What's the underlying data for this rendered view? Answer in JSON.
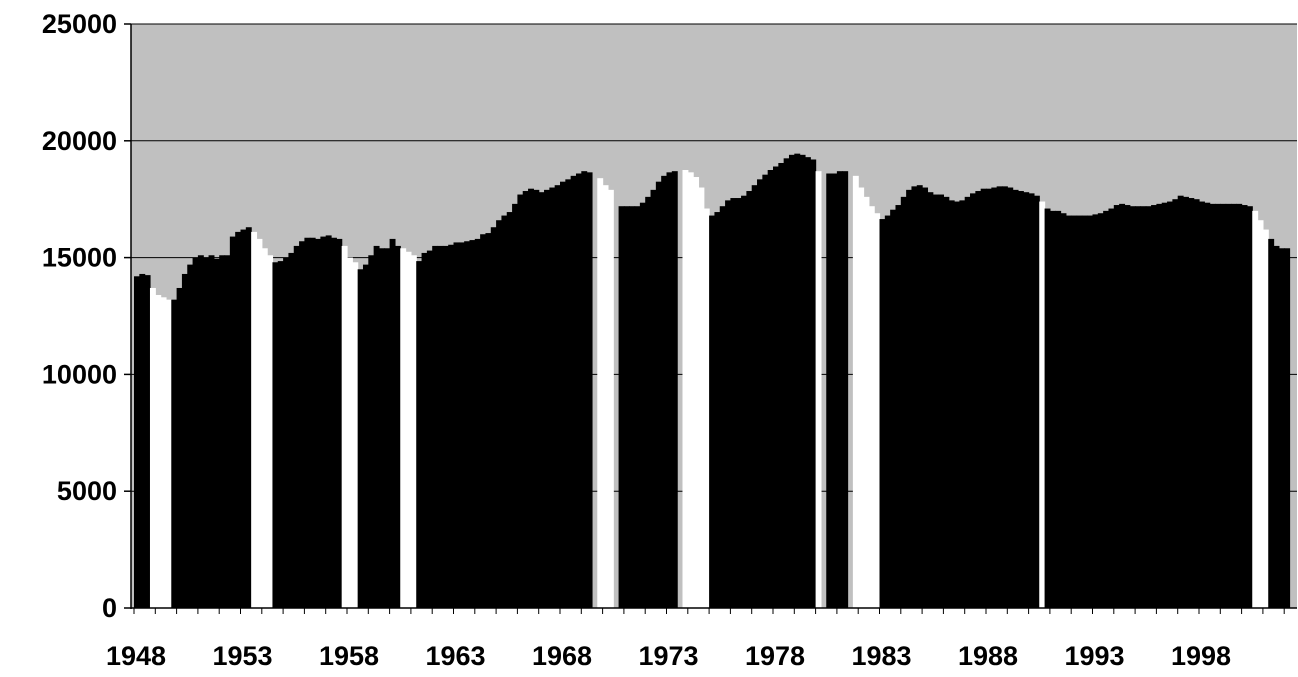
{
  "chart_data": {
    "type": "bar",
    "title": "",
    "xlabel": "",
    "ylabel": "",
    "ylim": [
      0,
      25000
    ],
    "y_ticks": [
      "0",
      "5000",
      "10000",
      "15000",
      "20000",
      "25000"
    ],
    "x_tick_labels": [
      "1948",
      "1953",
      "1958",
      "1963",
      "1968",
      "1973",
      "1978",
      "1983",
      "1988",
      "1993",
      "1998"
    ],
    "x_range": [
      1948,
      2002.25
    ],
    "grid": "horizontal major gridlines",
    "legend": "none",
    "colors": {
      "plot_background": "#c0c0c0",
      "expansion_bars": "#000000",
      "recession_bars": "#ffffff",
      "axes": "#000000"
    },
    "series": [
      {
        "values": [
          {
            "x": 1948.0,
            "y": 14200
          },
          {
            "x": 1948.25,
            "y": 14300
          },
          {
            "x": 1948.5,
            "y": 14250
          },
          {
            "x": 1948.75,
            "y": 13700,
            "recession": true
          },
          {
            "x": 1949.0,
            "y": 13400,
            "recession": true
          },
          {
            "x": 1949.25,
            "y": 13300,
            "recession": true
          },
          {
            "x": 1949.5,
            "y": 13200,
            "recession": true
          },
          {
            "x": 1949.75,
            "y": 13200
          },
          {
            "x": 1950.0,
            "y": 13700
          },
          {
            "x": 1950.25,
            "y": 14300
          },
          {
            "x": 1950.5,
            "y": 14700
          },
          {
            "x": 1950.75,
            "y": 15000
          },
          {
            "x": 1951.0,
            "y": 15100
          },
          {
            "x": 1951.25,
            "y": 15000
          },
          {
            "x": 1951.5,
            "y": 15100
          },
          {
            "x": 1951.75,
            "y": 14950
          },
          {
            "x": 1952.0,
            "y": 15100
          },
          {
            "x": 1952.25,
            "y": 15100
          },
          {
            "x": 1952.5,
            "y": 15900
          },
          {
            "x": 1952.75,
            "y": 16100
          },
          {
            "x": 1953.0,
            "y": 16200
          },
          {
            "x": 1953.25,
            "y": 16300
          },
          {
            "x": 1953.5,
            "y": 16100,
            "recession": true
          },
          {
            "x": 1953.75,
            "y": 15800,
            "recession": true
          },
          {
            "x": 1954.0,
            "y": 15400,
            "recession": true
          },
          {
            "x": 1954.25,
            "y": 15100,
            "recession": true
          },
          {
            "x": 1954.5,
            "y": 14800
          },
          {
            "x": 1954.75,
            "y": 14850
          },
          {
            "x": 1955.0,
            "y": 15000
          },
          {
            "x": 1955.25,
            "y": 15200
          },
          {
            "x": 1955.5,
            "y": 15500
          },
          {
            "x": 1955.75,
            "y": 15700
          },
          {
            "x": 1956.0,
            "y": 15850
          },
          {
            "x": 1956.25,
            "y": 15850
          },
          {
            "x": 1956.5,
            "y": 15800
          },
          {
            "x": 1956.75,
            "y": 15900
          },
          {
            "x": 1957.0,
            "y": 15950
          },
          {
            "x": 1957.25,
            "y": 15850
          },
          {
            "x": 1957.5,
            "y": 15800
          },
          {
            "x": 1957.75,
            "y": 15500,
            "recession": true
          },
          {
            "x": 1958.0,
            "y": 15000,
            "recession": true
          },
          {
            "x": 1958.25,
            "y": 14800,
            "recession": true
          },
          {
            "x": 1958.5,
            "y": 14500
          },
          {
            "x": 1958.75,
            "y": 14700
          },
          {
            "x": 1959.0,
            "y": 15100
          },
          {
            "x": 1959.25,
            "y": 15500
          },
          {
            "x": 1959.5,
            "y": 15400
          },
          {
            "x": 1959.75,
            "y": 15400
          },
          {
            "x": 1960.0,
            "y": 15800
          },
          {
            "x": 1960.25,
            "y": 15500
          },
          {
            "x": 1960.5,
            "y": 15400,
            "recession": true
          },
          {
            "x": 1960.75,
            "y": 15250,
            "recession": true
          },
          {
            "x": 1961.0,
            "y": 15100,
            "recession": true
          },
          {
            "x": 1961.25,
            "y": 14850
          },
          {
            "x": 1961.5,
            "y": 15200
          },
          {
            "x": 1961.75,
            "y": 15300
          },
          {
            "x": 1962.0,
            "y": 15500
          },
          {
            "x": 1962.25,
            "y": 15500
          },
          {
            "x": 1962.5,
            "y": 15500
          },
          {
            "x": 1962.75,
            "y": 15550
          },
          {
            "x": 1963.0,
            "y": 15650
          },
          {
            "x": 1963.25,
            "y": 15650
          },
          {
            "x": 1963.5,
            "y": 15700
          },
          {
            "x": 1963.75,
            "y": 15750
          },
          {
            "x": 1964.0,
            "y": 15800
          },
          {
            "x": 1964.25,
            "y": 16000
          },
          {
            "x": 1964.5,
            "y": 16050
          },
          {
            "x": 1964.75,
            "y": 16300
          },
          {
            "x": 1965.0,
            "y": 16600
          },
          {
            "x": 1965.25,
            "y": 16800
          },
          {
            "x": 1965.5,
            "y": 16950
          },
          {
            "x": 1965.75,
            "y": 17300
          },
          {
            "x": 1966.0,
            "y": 17700
          },
          {
            "x": 1966.25,
            "y": 17850
          },
          {
            "x": 1966.5,
            "y": 17950
          },
          {
            "x": 1966.75,
            "y": 17900
          },
          {
            "x": 1967.0,
            "y": 17800
          },
          {
            "x": 1967.25,
            "y": 17900
          },
          {
            "x": 1967.5,
            "y": 18000
          },
          {
            "x": 1967.75,
            "y": 18100
          },
          {
            "x": 1968.0,
            "y": 18250
          },
          {
            "x": 1968.25,
            "y": 18350
          },
          {
            "x": 1968.5,
            "y": 18500
          },
          {
            "x": 1968.75,
            "y": 18600
          },
          {
            "x": 1969.0,
            "y": 18700
          },
          {
            "x": 1969.25,
            "y": 18650
          },
          {
            "x": 1969.75,
            "y": 18400,
            "recession": true
          },
          {
            "x": 1970.0,
            "y": 18100,
            "recession": true
          },
          {
            "x": 1970.25,
            "y": 17900,
            "recession": true
          },
          {
            "x": 1970.75,
            "y": 17200
          },
          {
            "x": 1971.0,
            "y": 17200
          },
          {
            "x": 1971.25,
            "y": 17200
          },
          {
            "x": 1971.5,
            "y": 17200
          },
          {
            "x": 1971.75,
            "y": 17350
          },
          {
            "x": 1972.0,
            "y": 17600
          },
          {
            "x": 1972.25,
            "y": 17900
          },
          {
            "x": 1972.5,
            "y": 18250
          },
          {
            "x": 1972.75,
            "y": 18500
          },
          {
            "x": 1973.0,
            "y": 18650
          },
          {
            "x": 1973.25,
            "y": 18700
          },
          {
            "x": 1973.75,
            "y": 18750,
            "recession": true
          },
          {
            "x": 1974.0,
            "y": 18650,
            "recession": true
          },
          {
            "x": 1974.25,
            "y": 18450,
            "recession": true
          },
          {
            "x": 1974.5,
            "y": 18000,
            "recession": true
          },
          {
            "x": 1974.75,
            "y": 17100,
            "recession": true
          },
          {
            "x": 1975.0,
            "y": 16800
          },
          {
            "x": 1975.25,
            "y": 16950
          },
          {
            "x": 1975.5,
            "y": 17200
          },
          {
            "x": 1975.75,
            "y": 17450
          },
          {
            "x": 1976.0,
            "y": 17550
          },
          {
            "x": 1976.25,
            "y": 17550
          },
          {
            "x": 1976.5,
            "y": 17650
          },
          {
            "x": 1976.75,
            "y": 17850
          },
          {
            "x": 1977.0,
            "y": 18100
          },
          {
            "x": 1977.25,
            "y": 18350
          },
          {
            "x": 1977.5,
            "y": 18550
          },
          {
            "x": 1977.75,
            "y": 18750
          },
          {
            "x": 1978.0,
            "y": 18900
          },
          {
            "x": 1978.25,
            "y": 19050
          },
          {
            "x": 1978.5,
            "y": 19250
          },
          {
            "x": 1978.75,
            "y": 19400
          },
          {
            "x": 1979.0,
            "y": 19450
          },
          {
            "x": 1979.25,
            "y": 19400
          },
          {
            "x": 1979.5,
            "y": 19300
          },
          {
            "x": 1979.75,
            "y": 19200
          },
          {
            "x": 1980.0,
            "y": 18700,
            "recession": true
          },
          {
            "x": 1980.5,
            "y": 18600
          },
          {
            "x": 1980.75,
            "y": 18600
          },
          {
            "x": 1981.0,
            "y": 18700
          },
          {
            "x": 1981.25,
            "y": 18700
          },
          {
            "x": 1981.75,
            "y": 18500,
            "recession": true
          },
          {
            "x": 1982.0,
            "y": 18000,
            "recession": true
          },
          {
            "x": 1982.25,
            "y": 17600,
            "recession": true
          },
          {
            "x": 1982.5,
            "y": 17200,
            "recession": true
          },
          {
            "x": 1982.75,
            "y": 16900,
            "recession": true
          },
          {
            "x": 1983.0,
            "y": 16650
          },
          {
            "x": 1983.25,
            "y": 16800
          },
          {
            "x": 1983.5,
            "y": 17050
          },
          {
            "x": 1983.75,
            "y": 17250
          },
          {
            "x": 1984.0,
            "y": 17600
          },
          {
            "x": 1984.25,
            "y": 17900
          },
          {
            "x": 1984.5,
            "y": 18050
          },
          {
            "x": 1984.75,
            "y": 18100
          },
          {
            "x": 1985.0,
            "y": 18000
          },
          {
            "x": 1985.25,
            "y": 17800
          },
          {
            "x": 1985.5,
            "y": 17700
          },
          {
            "x": 1985.75,
            "y": 17700
          },
          {
            "x": 1986.0,
            "y": 17600
          },
          {
            "x": 1986.25,
            "y": 17450
          },
          {
            "x": 1986.5,
            "y": 17400
          },
          {
            "x": 1986.75,
            "y": 17450
          },
          {
            "x": 1987.0,
            "y": 17600
          },
          {
            "x": 1987.25,
            "y": 17750
          },
          {
            "x": 1987.5,
            "y": 17850
          },
          {
            "x": 1987.75,
            "y": 17950
          },
          {
            "x": 1988.0,
            "y": 17950
          },
          {
            "x": 1988.25,
            "y": 18000
          },
          {
            "x": 1988.5,
            "y": 18050
          },
          {
            "x": 1988.75,
            "y": 18050
          },
          {
            "x": 1989.0,
            "y": 18000
          },
          {
            "x": 1989.25,
            "y": 17900
          },
          {
            "x": 1989.5,
            "y": 17850
          },
          {
            "x": 1989.75,
            "y": 17800
          },
          {
            "x": 1990.0,
            "y": 17750
          },
          {
            "x": 1990.25,
            "y": 17650
          },
          {
            "x": 1990.5,
            "y": 17400,
            "recession": true
          },
          {
            "x": 1990.75,
            "y": 17100
          },
          {
            "x": 1991.0,
            "y": 17000
          },
          {
            "x": 1991.25,
            "y": 17000
          },
          {
            "x": 1991.5,
            "y": 16900
          },
          {
            "x": 1991.75,
            "y": 16800
          },
          {
            "x": 1992.0,
            "y": 16800
          },
          {
            "x": 1992.25,
            "y": 16800
          },
          {
            "x": 1992.5,
            "y": 16800
          },
          {
            "x": 1992.75,
            "y": 16800
          },
          {
            "x": 1993.0,
            "y": 16850
          },
          {
            "x": 1993.25,
            "y": 16900
          },
          {
            "x": 1993.5,
            "y": 17000
          },
          {
            "x": 1993.75,
            "y": 17100
          },
          {
            "x": 1994.0,
            "y": 17250
          },
          {
            "x": 1994.25,
            "y": 17300
          },
          {
            "x": 1994.5,
            "y": 17250
          },
          {
            "x": 1994.75,
            "y": 17200
          },
          {
            "x": 1995.0,
            "y": 17200
          },
          {
            "x": 1995.25,
            "y": 17200
          },
          {
            "x": 1995.5,
            "y": 17200
          },
          {
            "x": 1995.75,
            "y": 17250
          },
          {
            "x": 1996.0,
            "y": 17300
          },
          {
            "x": 1996.25,
            "y": 17350
          },
          {
            "x": 1996.5,
            "y": 17400
          },
          {
            "x": 1996.75,
            "y": 17500
          },
          {
            "x": 1997.0,
            "y": 17650
          },
          {
            "x": 1997.25,
            "y": 17600
          },
          {
            "x": 1997.5,
            "y": 17550
          },
          {
            "x": 1997.75,
            "y": 17500
          },
          {
            "x": 1998.0,
            "y": 17400
          },
          {
            "x": 1998.25,
            "y": 17350
          },
          {
            "x": 1998.5,
            "y": 17300
          },
          {
            "x": 1998.75,
            "y": 17300
          },
          {
            "x": 1999.0,
            "y": 17300
          },
          {
            "x": 1999.25,
            "y": 17300
          },
          {
            "x": 1999.5,
            "y": 17300
          },
          {
            "x": 1999.75,
            "y": 17300
          },
          {
            "x": 2000.0,
            "y": 17250
          },
          {
            "x": 2000.25,
            "y": 17200
          },
          {
            "x": 2000.5,
            "y": 17000,
            "recession": true
          },
          {
            "x": 2000.75,
            "y": 16600,
            "recession": true
          },
          {
            "x": 2001.0,
            "y": 16200,
            "recession": true
          },
          {
            "x": 2001.25,
            "y": 15800
          },
          {
            "x": 2001.5,
            "y": 15500
          },
          {
            "x": 2001.75,
            "y": 15400
          },
          {
            "x": 2002.0,
            "y": 15400
          }
        ]
      }
    ]
  }
}
